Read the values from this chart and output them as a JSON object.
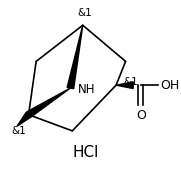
{
  "background_color": "#ffffff",
  "line_color": "#000000",
  "line_width": 1.2,
  "wedge_color": "#000000",
  "label_NH": "NH",
  "label_HCl": "HCl",
  "label_OH": "OH",
  "label_O": "O",
  "label_stereo": "&1",
  "font_size_NH": 8.5,
  "font_size_label": 7.5,
  "font_size_HCl": 11,
  "font_size_OH": 9,
  "font_size_O": 9
}
